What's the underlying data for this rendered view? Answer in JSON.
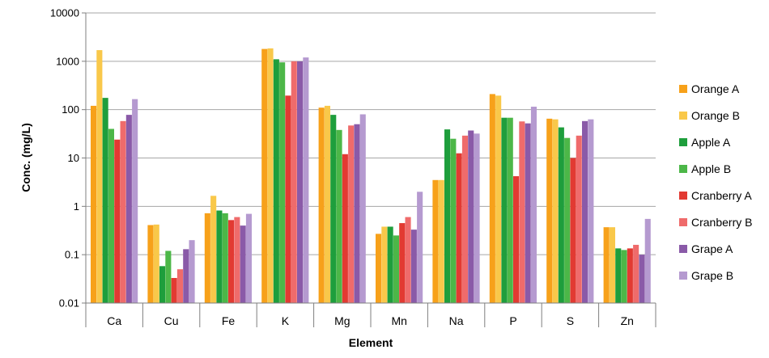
{
  "chart_data": {
    "type": "bar",
    "title": "",
    "xlabel": "Element",
    "ylabel": "Conc. (mg/L)",
    "yscale": "log",
    "ylim": [
      0.01,
      10000
    ],
    "yticks": [
      "10000",
      "1000",
      "100",
      "10",
      "1",
      "0.1",
      "0.01"
    ],
    "ytick_values": [
      10000,
      1000,
      100,
      10,
      1,
      0.1,
      0.01
    ],
    "grid": "horizontal",
    "legend_position": "right",
    "categories": [
      "Ca",
      "Cu",
      "Fe",
      "K",
      "Mg",
      "Mn",
      "Na",
      "P",
      "S",
      "Zn"
    ],
    "series": [
      {
        "name": "Orange A",
        "color": "#f7a11a",
        "values": [
          120,
          0.41,
          0.72,
          1800,
          110,
          0.27,
          3.5,
          210,
          65,
          0.37
        ]
      },
      {
        "name": "Orange B",
        "color": "#f9c84a",
        "values": [
          1700,
          0.42,
          1.65,
          1850,
          120,
          0.38,
          3.5,
          195,
          63,
          0.37
        ]
      },
      {
        "name": "Apple A",
        "color": "#1e9e3c",
        "values": [
          175,
          0.058,
          0.82,
          1100,
          78,
          0.38,
          39,
          68,
          43,
          0.135
        ]
      },
      {
        "name": "Apple B",
        "color": "#4cb748",
        "values": [
          40,
          0.12,
          0.72,
          950,
          38,
          0.25,
          25,
          68,
          26,
          0.125
        ]
      },
      {
        "name": "Cranberry A",
        "color": "#e23a32",
        "values": [
          24,
          0.033,
          0.52,
          195,
          12,
          0.45,
          12.5,
          4.2,
          10,
          0.135
        ]
      },
      {
        "name": "Cranberry B",
        "color": "#ef6b6b",
        "values": [
          58,
          0.05,
          0.6,
          1000,
          47,
          0.6,
          29,
          57,
          29,
          0.16
        ]
      },
      {
        "name": "Grape A",
        "color": "#8a5aa8",
        "values": [
          78,
          0.13,
          0.4,
          1000,
          50,
          0.33,
          37,
          52,
          58,
          0.1
        ]
      },
      {
        "name": "Grape B",
        "color": "#b59ad0",
        "values": [
          165,
          0.2,
          0.7,
          1200,
          80,
          2.0,
          32,
          115,
          63,
          0.55
        ]
      }
    ]
  }
}
